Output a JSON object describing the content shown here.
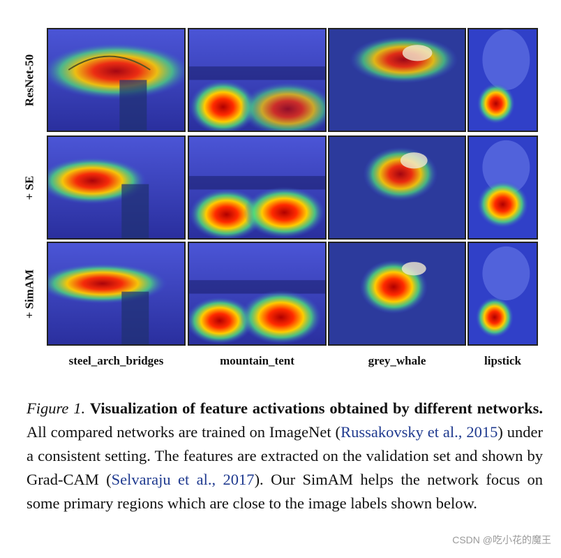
{
  "rows": [
    "ResNet-50",
    "+ SE",
    "+ SimAM"
  ],
  "columns": [
    "steel_arch_bridges",
    "mountain_tent",
    "grey_whale",
    "lipstick"
  ],
  "caption": {
    "fig_num": "Figure 1.",
    "title": "Visualization of feature activations obtained by different networks.",
    "text1": "All compared networks are trained on ImageNet (",
    "cite1": "Russakovsky et al., 2015",
    "text2": ") under a consistent setting. The features are extracted on the validation set and shown by Grad-CAM (",
    "cite2": "Selvaraju et al., 2017",
    "text3": "). Our SimAM helps the network focus on some primary regions which are close to the image labels shown below."
  },
  "watermark": "CSDN @吃小花的魔王"
}
